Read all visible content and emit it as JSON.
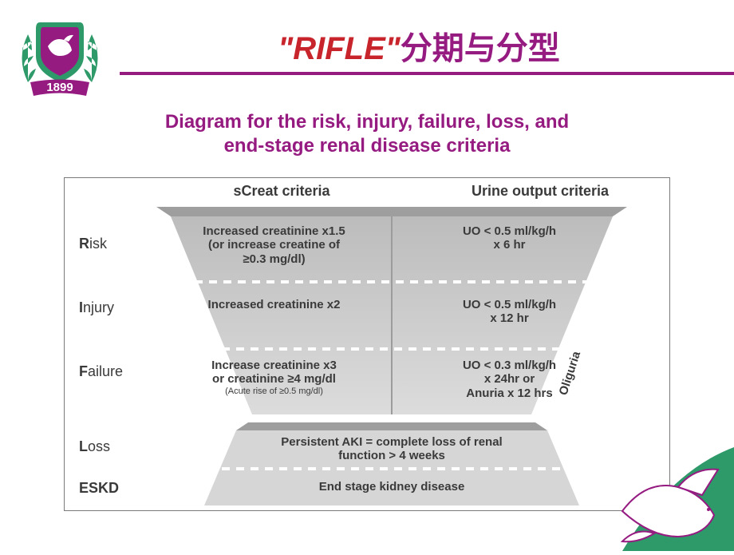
{
  "logo": {
    "year": "1899",
    "wreath_color": "#2e9a6a",
    "shield_outer": "#2e9a6a",
    "shield_inner": "#951b81",
    "ribbon_color": "#951b81",
    "text_color": "#ffffff"
  },
  "title": {
    "red_part": "\"RIFLE\"",
    "cn_part": "分期与分型",
    "red_color": "#c8242b",
    "cn_color": "#951b81",
    "fontsize": 40,
    "underline_color": "#951b81"
  },
  "subtitle": {
    "text_line1": "Diagram for the risk, injury, failure, loss, and",
    "text_line2": "end-stage renal disease criteria",
    "color": "#951b81",
    "fontsize": 24
  },
  "diagram": {
    "border_color": "#7a7a7a",
    "background": "#ffffff",
    "header_fontsize": 18,
    "col1_header": "sCreat criteria",
    "col2_header": "Urine output criteria",
    "label_fontsize": 18,
    "cell_fontsize": 15,
    "shade_light": "#d6d6d6",
    "shade_dark": "#b8b8b8",
    "dash_color": "#ffffff",
    "text_color": "#3a3a3a",
    "rows": [
      {
        "label_bold": "R",
        "label_rest": "isk",
        "c1": "Increased creatinine x1.5\n(or increase creatine of\n≥0.3 mg/dl)",
        "c2": "UO < 0.5 ml/kg/h\nx 6 hr"
      },
      {
        "label_bold": "I",
        "label_rest": "njury",
        "c1": "Increased creatinine x2",
        "c2": "UO < 0.5 ml/kg/h\nx 12 hr"
      },
      {
        "label_bold": "F",
        "label_rest": "ailure",
        "c1": "Increase creatinine x3\nor creatinine ≥4 mg/dl",
        "c1_small": "(Acute rise of ≥0.5 mg/dl)",
        "c2": "UO < 0.3 ml/kg/h\nx 24hr or\nAnuria x 12 hrs"
      }
    ],
    "oliguria_label": "Oliguria",
    "bottom": [
      {
        "label_bold": "L",
        "label_rest": "oss",
        "text": "Persistent AKI = complete loss of renal\nfunction > 4 weeks"
      },
      {
        "label_bold": "ESKD",
        "label_rest": "",
        "text": "End stage kidney disease"
      }
    ]
  },
  "dove": {
    "fill": "#ffffff",
    "stroke": "#951b81",
    "corner_bg": "#2e9a6a"
  }
}
